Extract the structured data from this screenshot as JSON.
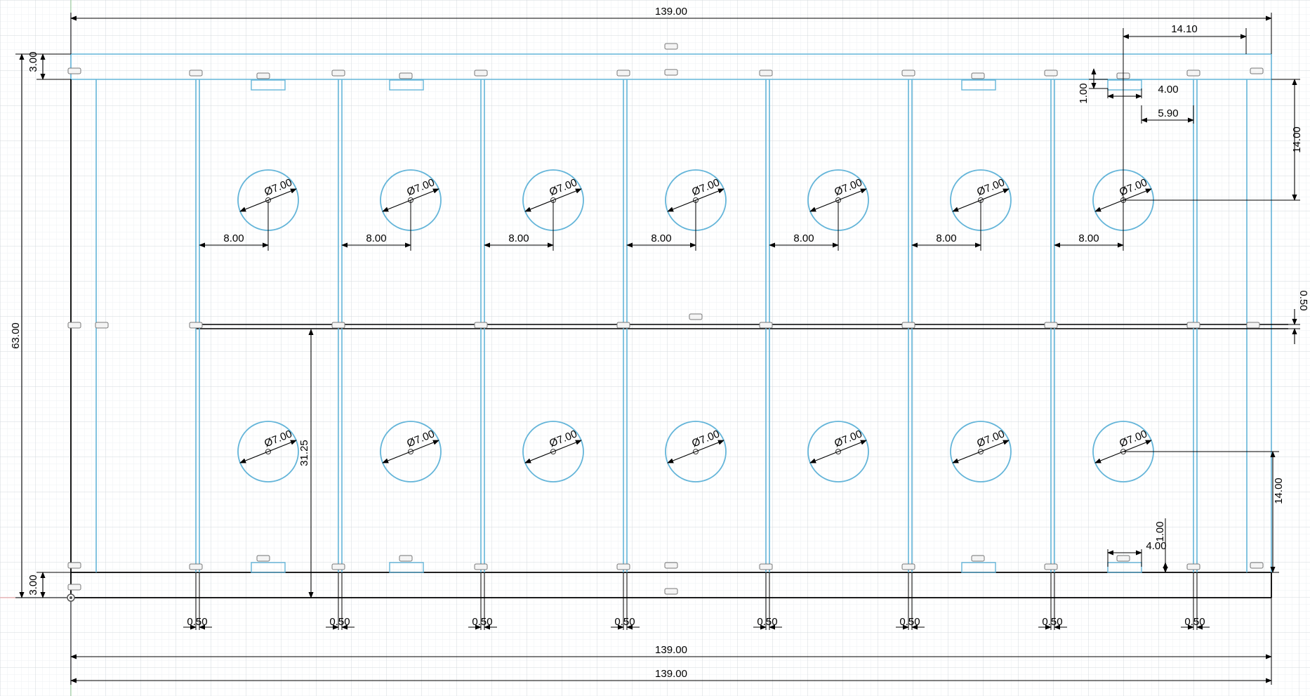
{
  "sketch": {
    "units": "mm",
    "colors": {
      "grid_minor": "#eef0f3",
      "grid_major": "#d3d8de",
      "sketch_line": "#64b5d9",
      "dimension": "#000000",
      "axis_x": "#f0a0a0",
      "axis_y": "#98d098"
    }
  },
  "dimensions": {
    "overall_width_top": "139.00",
    "overall_width_bottom_1": "139.00",
    "overall_width_bottom_2": "139.00",
    "overall_height": "63.00",
    "top_strip_height": "3.00",
    "bottom_strip_height": "3.00",
    "hole_offset_from_right": "14.10",
    "top_hole_from_top": "14.00",
    "bottom_hole_from_bottom": "14.00",
    "center_rail_thickness": "0.50",
    "center_rail_height": "31.25",
    "clip_height_top": "1.00",
    "clip_width_top": "4.00",
    "clip_offset_top": "5.90",
    "clip_height_bottom": "1.00",
    "clip_width_bottom": "4.00",
    "rib_width": "0.50",
    "hole_offset_from_rib": "8.00",
    "hole_diameter": "Ø7.00"
  },
  "holes": {
    "count_per_row": 7,
    "rows": 2
  },
  "ribs": {
    "count": 8
  }
}
